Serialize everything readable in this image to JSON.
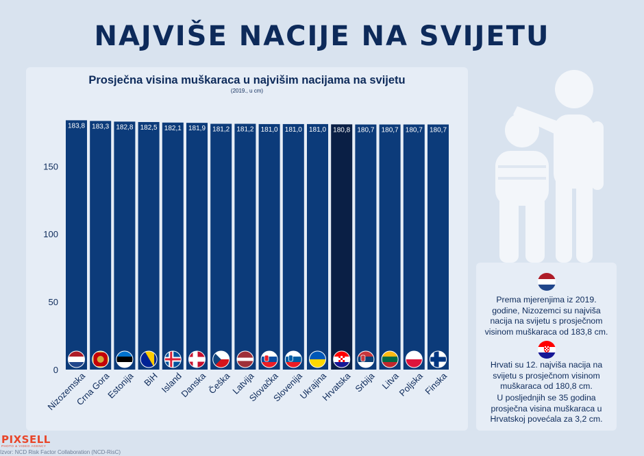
{
  "title": "NAJVIŠE NACIJE NA SVIJETU",
  "colors": {
    "bar": "#0c3b7a",
    "bar_highlight": "#0a1f45",
    "text": "#0d2a5a",
    "accent": "#e8462a"
  },
  "chart_data": {
    "type": "bar",
    "title": "Prosječna visina muškaraca u najvišim nacijama na svijetu",
    "subtitle": "(2019., u cm)",
    "ylim": [
      0,
      184
    ],
    "yticks": [
      0,
      50,
      100,
      150
    ],
    "grid": false,
    "highlight": "Hrvatska",
    "categories": [
      "Nizozemska",
      "Crna Gora",
      "Estonija",
      "BiH",
      "Island",
      "Danska",
      "Češka",
      "Latvija",
      "Slovačka",
      "Slovenija",
      "Ukrajina",
      "Hrvatska",
      "Srbija",
      "Litva",
      "Poljska",
      "Finska"
    ],
    "values": [
      183.8,
      183.3,
      182.8,
      182.5,
      182.1,
      181.9,
      181.2,
      181.2,
      181.0,
      181.0,
      181.0,
      180.8,
      180.7,
      180.7,
      180.7,
      180.7
    ],
    "value_labels": [
      "183,8",
      "183,3",
      "182,8",
      "182,5",
      "182,1",
      "181,9",
      "181,2",
      "181,2",
      "181,0",
      "181,0",
      "181,0",
      "180,8",
      "180,7",
      "180,7",
      "180,7",
      "180,7"
    ],
    "flag_icons": [
      "netherlands-flag-icon",
      "montenegro-flag-icon",
      "estonia-flag-icon",
      "bih-flag-icon",
      "iceland-flag-icon",
      "denmark-flag-icon",
      "czechia-flag-icon",
      "latvia-flag-icon",
      "slovakia-flag-icon",
      "slovenia-flag-icon",
      "ukraine-flag-icon",
      "croatia-flag-icon",
      "serbia-flag-icon",
      "lithuania-flag-icon",
      "poland-flag-icon",
      "finland-flag-icon"
    ]
  },
  "info": {
    "icon1": "netherlands-flag-icon",
    "text1": "Prema mjerenjima iz 2019. godine, Nizozemci su najviša nacija na svijetu s prosječnom visinom muškaraca od 183,8 cm.",
    "icon2": "croatia-flag-icon",
    "text2": "Hrvati su 12. najviša nacija na svijetu s prosječnom visinom muškaraca od 180,8 cm.",
    "text3": "U posljednjih se 35 godina prosječna visina muškaraca u Hrvatskoj povećala za 3,2 cm."
  },
  "logo": {
    "name": "PIXSELL",
    "tagline": "PHOTO & VIDEO AGENCY"
  },
  "source": "Izvor: NCD Risk Factor Collaboration (NCD-RisC)"
}
